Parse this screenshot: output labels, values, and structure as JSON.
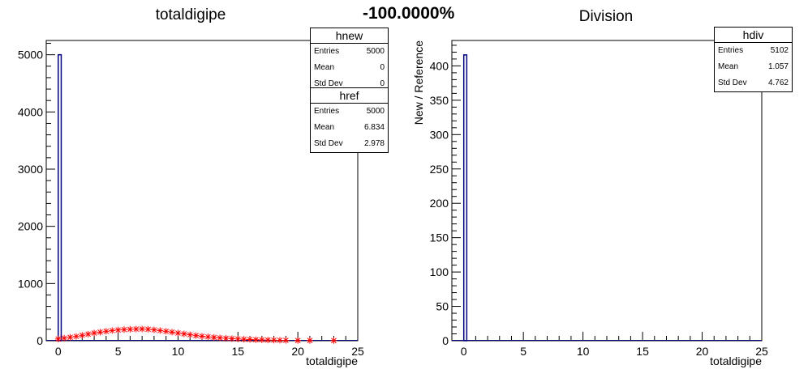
{
  "header": {
    "ratio_text": "-100.0000%"
  },
  "chart_data": [
    {
      "type": "histogram",
      "title": "totaldigipe",
      "xlabel": "totaldigipe",
      "ylabel": "",
      "xlim": [
        -1,
        25
      ],
      "ylim": [
        0,
        5250
      ],
      "xticks": [
        "0",
        "5",
        "10",
        "15",
        "20",
        "25"
      ],
      "yticks": [
        "0",
        "1000",
        "2000",
        "3000",
        "4000",
        "5000"
      ],
      "series": [
        {
          "name": "hnew",
          "color": "#000080",
          "style": "step",
          "x": [
            0
          ],
          "values": [
            5000
          ]
        },
        {
          "name": "href",
          "color": "#ff0000",
          "style": "error-markers",
          "x": [
            0,
            0.5,
            1,
            1.5,
            2,
            2.5,
            3,
            3.5,
            4,
            4.5,
            5,
            5.5,
            6,
            6.5,
            7,
            7.5,
            8,
            8.5,
            9,
            9.5,
            10,
            10.5,
            11,
            11.5,
            12,
            12.5,
            13,
            13.5,
            14,
            14.5,
            15,
            15.5,
            16,
            16.5,
            17,
            17.5,
            18,
            18.5,
            19,
            20,
            21,
            23
          ],
          "values": [
            30,
            45,
            60,
            75,
            95,
            115,
            135,
            150,
            165,
            178,
            188,
            195,
            200,
            203,
            205,
            200,
            190,
            178,
            165,
            150,
            135,
            120,
            105,
            90,
            78,
            68,
            58,
            50,
            43,
            37,
            31,
            26,
            22,
            18,
            15,
            12,
            10,
            8,
            6,
            4,
            3,
            2
          ]
        }
      ],
      "stats": [
        {
          "name": "hnew",
          "entries_label": "Entries",
          "entries": "5000",
          "mean_label": "Mean",
          "mean": "0",
          "std_label": "Std Dev",
          "std": "0"
        },
        {
          "name": "href",
          "entries_label": "Entries",
          "entries": "5000",
          "mean_label": "Mean",
          "mean": "6.834",
          "std_label": "Std Dev",
          "std": "2.978"
        }
      ]
    },
    {
      "type": "histogram",
      "title": "Division",
      "xlabel": "totaldigipe",
      "ylabel": "New / Reference",
      "xlim": [
        -1,
        25
      ],
      "ylim": [
        0,
        437
      ],
      "xticks": [
        "0",
        "5",
        "10",
        "15",
        "20",
        "25"
      ],
      "yticks": [
        "0",
        "50",
        "100",
        "150",
        "200",
        "250",
        "300",
        "350",
        "400"
      ],
      "series": [
        {
          "name": "hdiv",
          "color": "#000080",
          "style": "step",
          "x": [
            0
          ],
          "values": [
            416
          ]
        }
      ],
      "stats": [
        {
          "name": "hdiv",
          "entries_label": "Entries",
          "entries": "5102",
          "mean_label": "Mean",
          "mean": "1.057",
          "std_label": "Std Dev",
          "std": "4.762"
        }
      ]
    }
  ]
}
